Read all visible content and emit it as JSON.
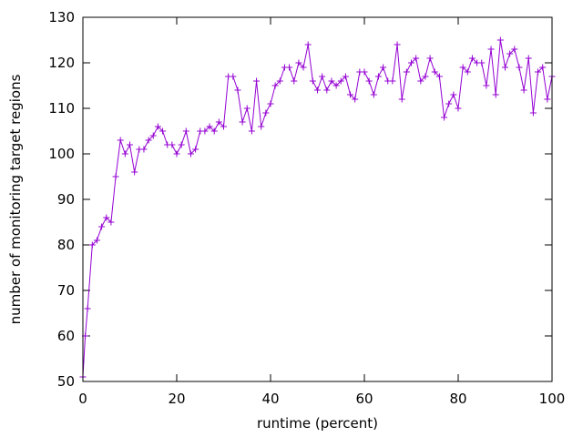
{
  "chart_data": {
    "type": "line",
    "xlabel": "runtime (percent)",
    "ylabel": "number of monitoring target regions",
    "xlim": [
      0,
      100
    ],
    "ylim": [
      50,
      130
    ],
    "xticks": [
      0,
      20,
      40,
      60,
      80,
      100
    ],
    "yticks": [
      50,
      60,
      70,
      80,
      90,
      100,
      110,
      120,
      130
    ],
    "grid": false,
    "legend": "none",
    "line_color": "#9400d3",
    "marker": "plus",
    "series": [
      {
        "x": [
          0,
          0.5,
          1,
          2,
          3,
          4,
          5,
          6,
          7,
          8,
          9,
          10,
          11,
          12,
          13,
          14,
          15,
          16,
          17,
          18,
          19,
          20,
          21,
          22,
          23,
          24,
          25,
          26,
          27,
          28,
          29,
          30,
          31,
          32,
          33,
          34,
          35,
          36,
          37,
          38,
          39,
          40,
          41,
          42,
          43,
          44,
          45,
          46,
          47,
          48,
          49,
          50,
          51,
          52,
          53,
          54,
          55,
          56,
          57,
          58,
          59,
          60,
          61,
          62,
          63,
          64,
          65,
          66,
          67,
          68,
          69,
          70,
          71,
          72,
          73,
          74,
          75,
          76,
          77,
          78,
          79,
          80,
          81,
          82,
          83,
          84,
          85,
          86,
          87,
          88,
          89,
          90,
          91,
          92,
          93,
          94,
          95,
          96,
          97,
          98,
          99,
          100
        ],
        "y": [
          51,
          60,
          66,
          80,
          81,
          84,
          86,
          85,
          95,
          103,
          100,
          102,
          96,
          101,
          101,
          103,
          104,
          106,
          105,
          102,
          102,
          100,
          102,
          105,
          100,
          101,
          105,
          105,
          106,
          105,
          107,
          106,
          117,
          117,
          114,
          107,
          110,
          105,
          116,
          106,
          109,
          111,
          115,
          116,
          119,
          119,
          116,
          120,
          119,
          124,
          116,
          114,
          117,
          114,
          116,
          115,
          116,
          117,
          113,
          112,
          118,
          118,
          116,
          113,
          117,
          119,
          116,
          116,
          124,
          112,
          118,
          120,
          121,
          116,
          117,
          121,
          118,
          117,
          108,
          111,
          113,
          110,
          119,
          118,
          121,
          120,
          120,
          115,
          123,
          113,
          125,
          119,
          122,
          123,
          119,
          114,
          121,
          109,
          118,
          119,
          112,
          117
        ]
      }
    ]
  }
}
